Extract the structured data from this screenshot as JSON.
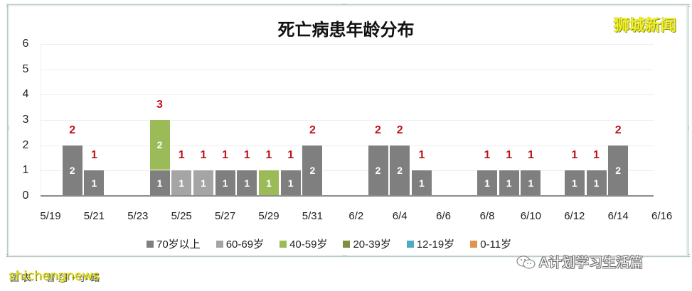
{
  "chart_data": {
    "type": "bar",
    "stacked": true,
    "title": "死亡病患年龄分布",
    "xlabel": "",
    "ylabel": "",
    "ylim": [
      0,
      6
    ],
    "yticks": [
      0,
      1,
      2,
      3,
      4,
      5,
      6
    ],
    "grid": true,
    "legend_position": "bottom",
    "xtick_labels": [
      "5/19",
      "5/21",
      "5/23",
      "5/25",
      "5/27",
      "5/29",
      "5/31",
      "6/2",
      "6/4",
      "6/6",
      "6/8",
      "6/10",
      "6/12",
      "6/14",
      "6/16"
    ],
    "categories": [
      "5/19",
      "5/20",
      "5/21",
      "5/22",
      "5/23",
      "5/24",
      "5/25",
      "5/26",
      "5/27",
      "5/28",
      "5/29",
      "5/30",
      "5/31",
      "6/1",
      "6/2",
      "6/3",
      "6/4",
      "6/5",
      "6/6",
      "6/7",
      "6/8",
      "6/9",
      "6/10",
      "6/11",
      "6/12",
      "6/13",
      "6/14",
      "6/15",
      "6/16"
    ],
    "series": [
      {
        "name": "70岁以上",
        "color": "#7f7f7f",
        "values": [
          0,
          2,
          1,
          0,
          0,
          1,
          0,
          0,
          1,
          1,
          0,
          1,
          2,
          0,
          0,
          2,
          2,
          1,
          0,
          0,
          1,
          1,
          1,
          0,
          1,
          1,
          2,
          0,
          0
        ]
      },
      {
        "name": "60-69岁",
        "color": "#a5a5a5",
        "values": [
          0,
          0,
          0,
          0,
          0,
          0,
          1,
          1,
          0,
          0,
          0,
          0,
          0,
          0,
          0,
          0,
          0,
          0,
          0,
          0,
          0,
          0,
          0,
          0,
          0,
          0,
          0,
          0,
          0
        ]
      },
      {
        "name": "40-59岁",
        "color": "#9bbb59",
        "values": [
          0,
          0,
          0,
          0,
          0,
          2,
          0,
          0,
          0,
          0,
          1,
          0,
          0,
          0,
          0,
          0,
          0,
          0,
          0,
          0,
          0,
          0,
          0,
          0,
          0,
          0,
          0,
          0,
          0
        ]
      },
      {
        "name": "20-39岁",
        "color": "#7f8f3f",
        "values": [
          0,
          0,
          0,
          0,
          0,
          0,
          0,
          0,
          0,
          0,
          0,
          0,
          0,
          0,
          0,
          0,
          0,
          0,
          0,
          0,
          0,
          0,
          0,
          0,
          0,
          0,
          0,
          0,
          0
        ]
      },
      {
        "name": "12-19岁",
        "color": "#4bacc6",
        "values": [
          0,
          0,
          0,
          0,
          0,
          0,
          0,
          0,
          0,
          0,
          0,
          0,
          0,
          0,
          0,
          0,
          0,
          0,
          0,
          0,
          0,
          0,
          0,
          0,
          0,
          0,
          0,
          0,
          0
        ]
      },
      {
        "name": "0-11岁",
        "color": "#e0954f",
        "values": [
          0,
          0,
          0,
          0,
          0,
          0,
          0,
          0,
          0,
          0,
          0,
          0,
          0,
          0,
          0,
          0,
          0,
          0,
          0,
          0,
          0,
          0,
          0,
          0,
          0,
          0,
          0,
          0,
          0
        ]
      }
    ],
    "totals": [
      0,
      2,
      1,
      0,
      0,
      3,
      1,
      1,
      1,
      1,
      1,
      1,
      2,
      0,
      0,
      2,
      2,
      1,
      0,
      0,
      1,
      1,
      1,
      0,
      1,
      1,
      2,
      0,
      0
    ]
  },
  "chart": {
    "title": "死亡病患年龄分布",
    "total_label_color": "#c0141f"
  },
  "legend": [
    {
      "label": "70岁以上",
      "color": "#7f7f7f"
    },
    {
      "label": "60-69岁",
      "color": "#a5a5a5"
    },
    {
      "label": "40-59岁",
      "color": "#9bbb59"
    },
    {
      "label": "20-39岁",
      "color": "#7f8f3f"
    },
    {
      "label": "12-19岁",
      "color": "#4bacc6"
    },
    {
      "label": "0-11岁",
      "color": "#e0954f"
    }
  ],
  "watermarks": {
    "brand": "狮城新闻",
    "site": "shichengnews",
    "caption": "图表：曾翔•小路",
    "wechat": "A计划学习生活篇"
  }
}
